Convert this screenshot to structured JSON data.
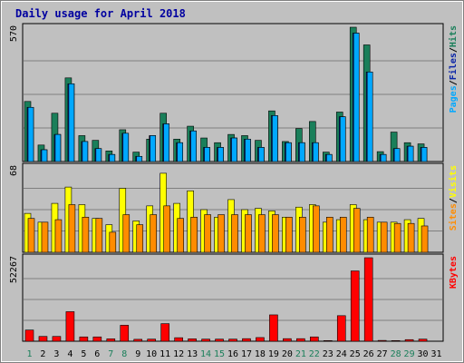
{
  "chart_data": {
    "type": "bar",
    "title": "Daily usage for April 2018",
    "x": [
      "1",
      "2",
      "3",
      "4",
      "5",
      "6",
      "7",
      "8",
      "9",
      "10",
      "11",
      "12",
      "13",
      "14",
      "15",
      "16",
      "17",
      "18",
      "19",
      "20",
      "21",
      "22",
      "23",
      "24",
      "25",
      "26",
      "27",
      "28",
      "29",
      "30",
      "31"
    ],
    "weekend_days": [
      "1",
      "7",
      "8",
      "14",
      "15",
      "21",
      "22",
      "28",
      "29"
    ],
    "panels": [
      {
        "axis_label": "570",
        "ylim": [
          0,
          570
        ],
        "legend": [
          "Pages",
          "/",
          "Files",
          "/",
          "Hits"
        ],
        "series": [
          {
            "name": "Hits",
            "color": "#1a7f5a",
            "values": [
              255,
              70,
              205,
              355,
              110,
              90,
              45,
              135,
              40,
              95,
              205,
              95,
              150,
              100,
              80,
              115,
              110,
              90,
              215,
              85,
              140,
              170,
              40,
              210,
              570,
              495,
              42,
              125,
              80,
              75,
              0
            ]
          },
          {
            "name": "Files",
            "color": "#0a24a8",
            "values": [
              230,
              50,
              115,
              330,
              85,
              55,
              30,
              120,
              22,
              110,
              160,
              80,
              130,
              60,
              60,
              100,
              95,
              60,
              195,
              80,
              80,
              80,
              30,
              190,
              545,
              380,
              30,
              55,
              65,
              60,
              0
            ]
          },
          {
            "name": "Pages",
            "color": "#00a8ff",
            "values": [
              230,
              50,
              115,
              330,
              85,
              55,
              30,
              120,
              22,
              110,
              160,
              80,
              130,
              60,
              60,
              100,
              95,
              60,
              195,
              80,
              80,
              80,
              30,
              190,
              545,
              380,
              30,
              55,
              65,
              60,
              0
            ]
          }
        ]
      },
      {
        "axis_label": "68",
        "ylim": [
          0,
          68
        ],
        "legend": [
          "Sites",
          "/",
          "Visits"
        ],
        "series": [
          {
            "name": "Visits",
            "color": "#ffff00",
            "values": [
              31,
              24,
              39,
              52,
              38,
              27,
              22,
              51,
              25,
              37,
              63,
              39,
              49,
              34,
              28,
              42,
              34,
              35,
              33,
              28,
              36,
              38,
              24,
              26,
              38,
              26,
              24,
              24,
              26,
              27,
              0
            ]
          },
          {
            "name": "Sites",
            "color": "#ff8c00",
            "values": [
              27,
              24,
              26,
              38,
              28,
              27,
              16,
              30,
              22,
              30,
              37,
              27,
              28,
              30,
              30,
              30,
              30,
              30,
              30,
              28,
              28,
              37,
              28,
              28,
              35,
              28,
              24,
              23,
              23,
              21,
              0
            ]
          }
        ]
      },
      {
        "axis_label": "52267",
        "ylim": [
          0,
          52267
        ],
        "legend": [
          "KBytes"
        ],
        "series": [
          {
            "name": "KBytes",
            "color": "#ff0000",
            "values": [
              7000,
              3000,
              3000,
              18500,
              2700,
              2700,
              1500,
              10000,
              1200,
              1300,
              11000,
              2200,
              1500,
              1300,
              1300,
              1300,
              1600,
              2300,
              16500,
              1600,
              1600,
              2700,
              400,
              16000,
              44000,
              52267,
              500,
              400,
              1000,
              1300,
              0
            ]
          }
        ]
      }
    ]
  }
}
